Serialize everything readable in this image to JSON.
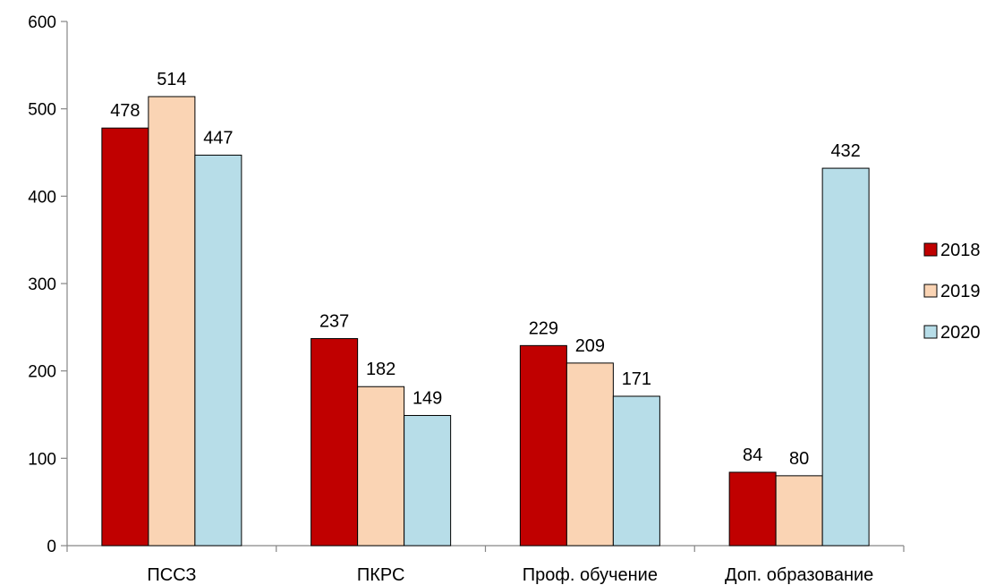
{
  "chart_data": {
    "type": "bar",
    "title": "",
    "xlabel": "",
    "ylabel": "",
    "categories": [
      "ПССЗ",
      "ПКРС",
      "Проф. обучение",
      "Доп. образование"
    ],
    "series": [
      {
        "name": "2018",
        "color": "#c00000",
        "values": [
          478,
          237,
          229,
          84
        ]
      },
      {
        "name": "2019",
        "color": "#fad4b4",
        "values": [
          514,
          182,
          209,
          80
        ]
      },
      {
        "name": "2020",
        "color": "#b7dde8",
        "values": [
          447,
          149,
          171,
          432
        ]
      }
    ],
    "ylim": [
      0,
      600
    ],
    "yticks": [
      0,
      100,
      200,
      300,
      400,
      500,
      600
    ],
    "grid": false,
    "legend_position": "right"
  }
}
